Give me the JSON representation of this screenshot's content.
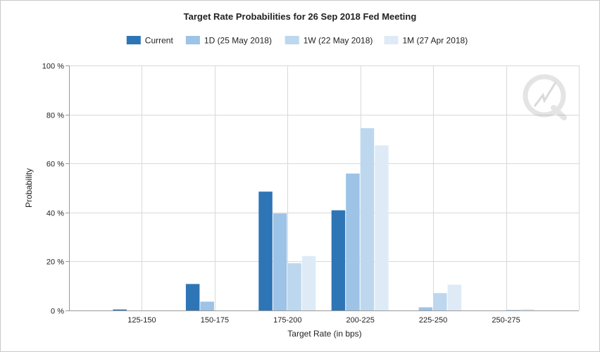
{
  "chart_data": {
    "type": "bar",
    "title": "Target Rate Probabilities for 26 Sep 2018 Fed Meeting",
    "xlabel": "Target Rate (in bps)",
    "ylabel": "Probability",
    "categories": [
      "125-150",
      "150-175",
      "175-200",
      "200-225",
      "225-250",
      "250-275"
    ],
    "ylim": [
      0,
      100
    ],
    "yticks": [
      0,
      20,
      40,
      60,
      80,
      100
    ],
    "ytick_labels": [
      "0 %",
      "20 %",
      "40 %",
      "60 %",
      "80 %",
      "100 %"
    ],
    "grid": true,
    "legend_position": "top-center",
    "series": [
      {
        "name": "Current",
        "color": "#2e75b6",
        "values": [
          0.4,
          10.8,
          48.5,
          40.9,
          0,
          0
        ]
      },
      {
        "name": "1D (25 May 2018)",
        "color": "#9dc3e6",
        "values": [
          0,
          3.6,
          39.6,
          55.9,
          1.3,
          0
        ]
      },
      {
        "name": "1W (22 May 2018)",
        "color": "#bdd7ee",
        "values": [
          0,
          0,
          19.3,
          74.4,
          7.1,
          0.3
        ]
      },
      {
        "name": "1M (27 Apr 2018)",
        "color": "#deebf7",
        "values": [
          0,
          0,
          22.2,
          67.4,
          10.5,
          0.6
        ]
      }
    ]
  }
}
